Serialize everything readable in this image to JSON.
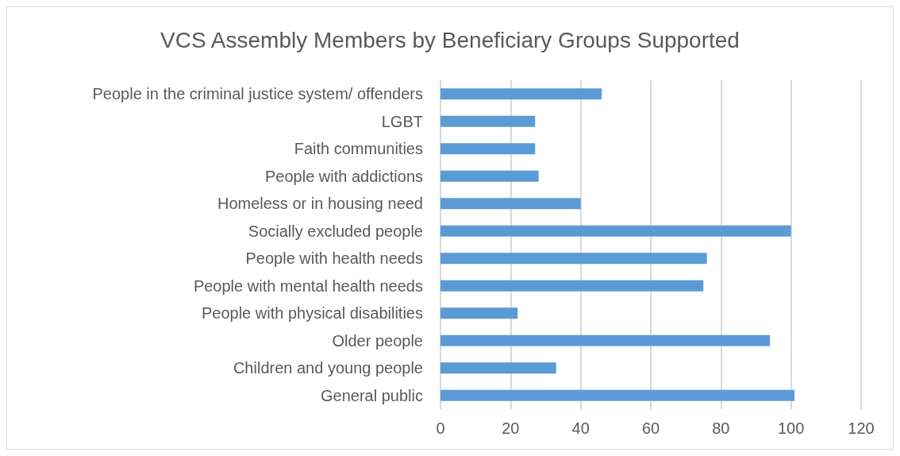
{
  "chart_data": {
    "type": "bar",
    "orientation": "horizontal",
    "title": "VCS Assembly Members by Beneficiary Groups Supported",
    "categories": [
      "People in the criminal justice system/ offenders",
      "LGBT",
      "Faith communities",
      "People with addictions",
      "Homeless or in housing need",
      "Socially excluded people",
      "People with health needs",
      "People with mental health needs",
      "People with physical disabilities",
      "Older people",
      "Children and young people",
      "General public"
    ],
    "values": [
      46,
      27,
      27,
      28,
      40,
      100,
      76,
      75,
      22,
      94,
      33,
      101
    ],
    "color": "#5b9bd5",
    "xlim": [
      0,
      120
    ],
    "xticks": [
      0,
      20,
      40,
      60,
      80,
      100,
      120
    ],
    "grid": "x"
  }
}
